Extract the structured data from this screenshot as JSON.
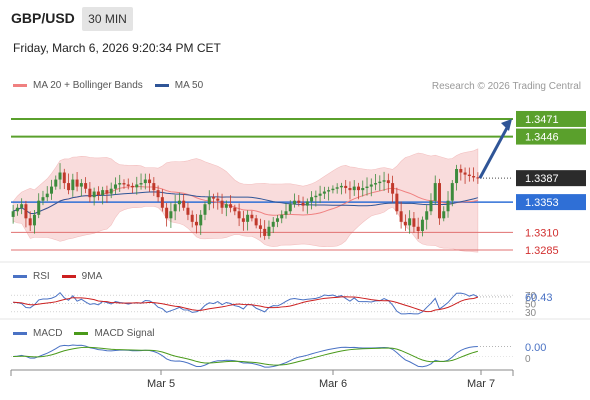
{
  "header": {
    "pair": "GBP/USD",
    "timeframe": "30 MIN",
    "datetime": "Friday, March 6, 2026 9:20:34 PM CET"
  },
  "legend": {
    "ma20_label": "MA 20 + Bollinger Bands",
    "ma50_label": "MA 50",
    "credit": "Research © 2026 Trading Central",
    "rsi_label": "RSI",
    "rsi_ma_label": "9MA",
    "macd_label": "MACD",
    "macd_signal_label": "MACD Signal"
  },
  "colors": {
    "up": "#3d8b3d",
    "down": "#c0392b",
    "band_fill": "#f9dcdc",
    "ma20": "#f08080",
    "ma50": "#2f5597",
    "resistance": "#5aa02c",
    "support": "#e07070",
    "pivot": "#2f6fd6",
    "current": "#2b2b2b",
    "rsi": "#4a72c4",
    "rsi_ma": "#cc2020",
    "macd": "#4a72c4",
    "macd_signal": "#4a9a1a"
  },
  "chart_data": [
    {
      "type": "candlestick",
      "title": "GBP/USD",
      "x_ticks": [
        "Mar 5",
        "Mar 6",
        "Mar 7"
      ],
      "ylim": [
        1.3268,
        1.3505
      ],
      "levels": [
        {
          "value": 1.3471,
          "label": "1.3471",
          "kind": "resistance"
        },
        {
          "value": 1.3446,
          "label": "1.3446",
          "kind": "resistance"
        },
        {
          "value": 1.3387,
          "label": "1.3387",
          "kind": "current"
        },
        {
          "value": 1.3353,
          "label": "1.3353",
          "kind": "pivot"
        },
        {
          "value": 1.331,
          "label": "1.3310",
          "kind": "support"
        },
        {
          "value": 1.3285,
          "label": "1.3285",
          "kind": "support"
        }
      ],
      "forecast_target": 1.3471,
      "series_close": [
        1.334,
        1.3345,
        1.335,
        1.333,
        1.332,
        1.3335,
        1.3355,
        1.336,
        1.3365,
        1.3375,
        1.3385,
        1.3395,
        1.338,
        1.337,
        1.3385,
        1.3375,
        1.338,
        1.3372,
        1.336,
        1.3368,
        1.3363,
        1.337,
        1.3365,
        1.3372,
        1.3378,
        1.338,
        1.3378,
        1.3376,
        1.3374,
        1.3378,
        1.338,
        1.3385,
        1.338,
        1.337,
        1.336,
        1.3345,
        1.333,
        1.334,
        1.335,
        1.3355,
        1.3345,
        1.3335,
        1.3325,
        1.332,
        1.3335,
        1.335,
        1.336,
        1.3358,
        1.3355,
        1.3345,
        1.335,
        1.3345,
        1.334,
        1.333,
        1.3325,
        1.3335,
        1.333,
        1.332,
        1.3315,
        1.3305,
        1.3318,
        1.3325,
        1.333,
        1.3335,
        1.334,
        1.335,
        1.3355,
        1.3352,
        1.3348,
        1.3354,
        1.336,
        1.3362,
        1.3365,
        1.3368,
        1.337,
        1.3372,
        1.3374,
        1.3376,
        1.3373,
        1.337,
        1.3375,
        1.337,
        1.3373,
        1.3375,
        1.3378,
        1.338,
        1.3382,
        1.3384,
        1.338,
        1.3365,
        1.334,
        1.3325,
        1.332,
        1.333,
        1.3318,
        1.3312,
        1.3328,
        1.334,
        1.3355,
        1.338,
        1.333,
        1.334,
        1.3355,
        1.338,
        1.34,
        1.3395,
        1.3392,
        1.339,
        1.3388,
        1.3387
      ],
      "rsi": {
        "ylim": [
          20,
          85
        ],
        "levels": [
          70,
          50,
          30
        ],
        "value_label": "60.43"
      },
      "macd": {
        "value_label": "0.00",
        "zero_label": "0"
      }
    }
  ]
}
